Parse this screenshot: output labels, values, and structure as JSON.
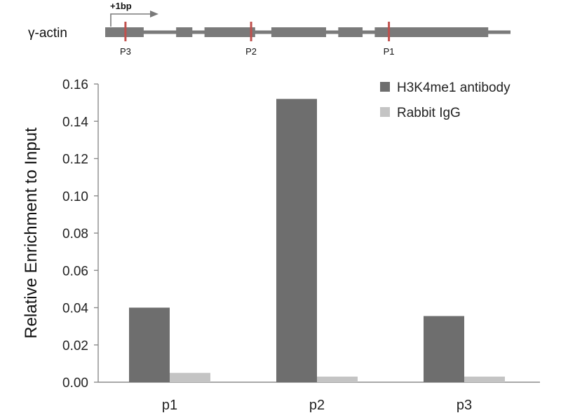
{
  "gene_map": {
    "gene_label": "γ-actin",
    "tss_label": "+1bp",
    "primer_sites": [
      {
        "label": "P3",
        "position": 0.05
      },
      {
        "label": "P2",
        "position": 0.36
      },
      {
        "label": "P1",
        "position": 0.7
      }
    ],
    "exons": [
      [
        0.0,
        0.095
      ],
      [
        0.175,
        0.215
      ],
      [
        0.245,
        0.37
      ],
      [
        0.41,
        0.545
      ],
      [
        0.575,
        0.635
      ],
      [
        0.665,
        0.945
      ]
    ],
    "colors": {
      "backbone": "#7a7a7a",
      "exon": "#7a7a7a",
      "site": "#c0504d",
      "arrow": "#7a7a7a"
    }
  },
  "chart_data": {
    "type": "bar",
    "categories": [
      "p1",
      "p2",
      "p3"
    ],
    "series": [
      {
        "name": "H3K4me1 antibody",
        "values": [
          0.04,
          0.152,
          0.0355
        ],
        "color": "#6e6e6e"
      },
      {
        "name": "Rabbit IgG",
        "values": [
          0.005,
          0.003,
          0.003
        ],
        "color": "#c4c4c4"
      }
    ],
    "ylabel": "Relative Enrichment to Input",
    "xlabel": "",
    "ylim": [
      0,
      0.16
    ],
    "yticks": [
      0,
      0.02,
      0.04,
      0.06,
      0.08,
      0.1,
      0.12,
      0.14,
      0.16
    ],
    "ytick_labels": [
      "0.00",
      "0.02",
      "0.04",
      "0.06",
      "0.08",
      "0.10",
      "0.12",
      "0.14",
      "0.16"
    ],
    "grid": false,
    "legend": "top-right"
  }
}
